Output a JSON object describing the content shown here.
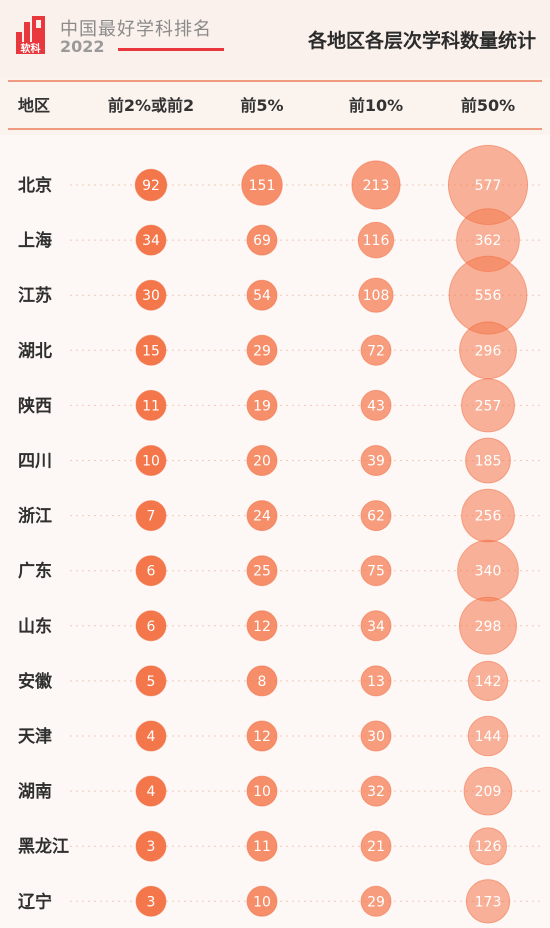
{
  "header": {
    "brand_title": "中国最好学科排名",
    "brand_year": "2022",
    "brand_mark": "软科",
    "page_title": "各地区各层次学科数量统计"
  },
  "colors": {
    "accent": "#e8383d",
    "bubble_fill": "#f4764b",
    "bubble_text": "#ffffff"
  },
  "chart_data": {
    "type": "scatter",
    "title": "各地区各层次学科数量统计",
    "row_header": "地区",
    "categories": [
      "前2%或前2",
      "前5%",
      "前10%",
      "前50%"
    ],
    "rows": [
      "北京",
      "上海",
      "江苏",
      "湖北",
      "陕西",
      "四川",
      "浙江",
      "广东",
      "山东",
      "安徽",
      "天津",
      "湖南",
      "黑龙江",
      "辽宁"
    ],
    "series": [
      {
        "name": "前2%或前2",
        "values": [
          92,
          34,
          30,
          15,
          11,
          10,
          7,
          6,
          6,
          5,
          4,
          4,
          3,
          3
        ]
      },
      {
        "name": "前5%",
        "values": [
          151,
          69,
          54,
          29,
          19,
          20,
          24,
          25,
          12,
          8,
          12,
          10,
          11,
          10
        ]
      },
      {
        "name": "前10%",
        "values": [
          213,
          116,
          108,
          72,
          43,
          39,
          62,
          75,
          34,
          13,
          30,
          32,
          21,
          29
        ]
      },
      {
        "name": "前50%",
        "values": [
          577,
          362,
          556,
          296,
          257,
          185,
          256,
          340,
          298,
          142,
          144,
          209,
          126,
          173
        ]
      }
    ]
  }
}
